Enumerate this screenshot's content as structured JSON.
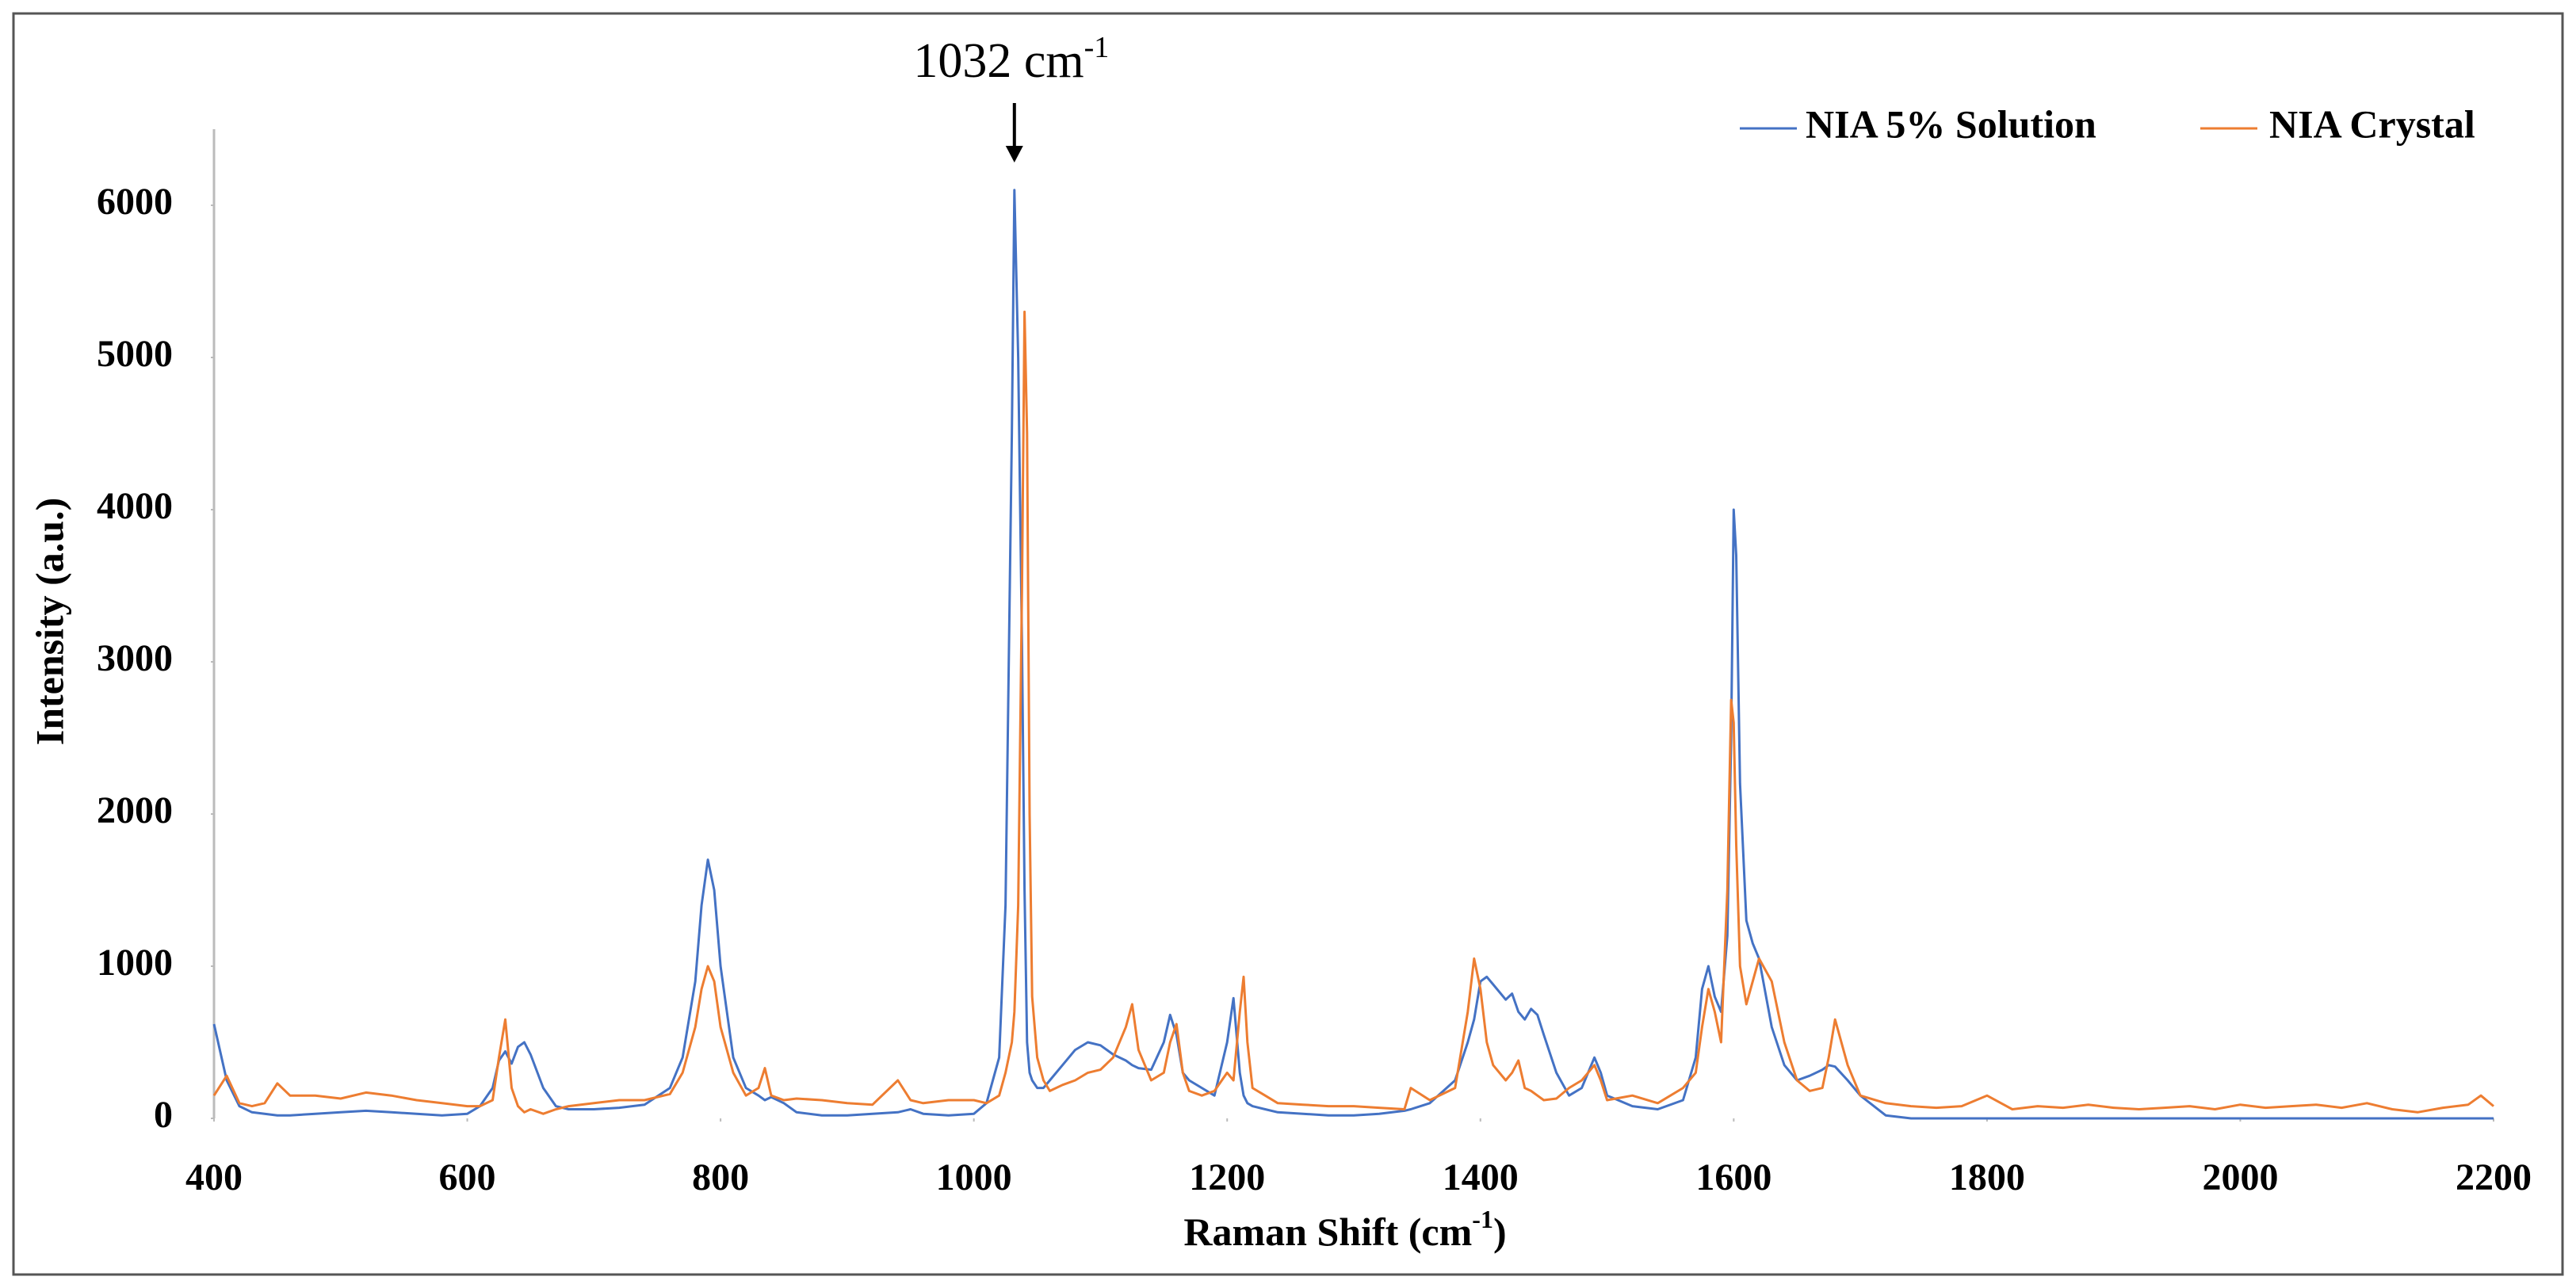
{
  "chart_data": {
    "type": "line",
    "annotation": {
      "text": "1032 cm",
      "sup": "-1",
      "x": 1032
    },
    "x_label": {
      "text": "Raman Shift (cm",
      "sup": "-1",
      "close": ")"
    },
    "y_label": "Intensity (a.u.)",
    "legend": "upper right",
    "xlim": [
      400,
      2200
    ],
    "xticks": [
      400,
      600,
      800,
      1000,
      1200,
      1400,
      1600,
      1800,
      2000,
      2200
    ],
    "ylim": [
      0,
      6500
    ],
    "yticks": [
      0,
      1000,
      2000,
      3000,
      4000,
      5000,
      6000
    ],
    "x": [
      400,
      410,
      420,
      430,
      440,
      450,
      460,
      480,
      500,
      520,
      540,
      560,
      580,
      600,
      610,
      620,
      625,
      630,
      635,
      640,
      645,
      650,
      660,
      670,
      680,
      700,
      720,
      740,
      760,
      770,
      780,
      785,
      790,
      795,
      800,
      810,
      820,
      830,
      835,
      840,
      850,
      860,
      880,
      900,
      920,
      940,
      950,
      960,
      980,
      1000,
      1010,
      1020,
      1025,
      1030,
      1032,
      1035,
      1038,
      1040,
      1042,
      1044,
      1046,
      1050,
      1055,
      1060,
      1070,
      1080,
      1090,
      1100,
      1110,
      1120,
      1125,
      1130,
      1140,
      1150,
      1155,
      1160,
      1165,
      1170,
      1180,
      1190,
      1200,
      1205,
      1210,
      1213,
      1216,
      1220,
      1230,
      1240,
      1260,
      1280,
      1300,
      1320,
      1340,
      1345,
      1360,
      1380,
      1390,
      1395,
      1400,
      1405,
      1410,
      1420,
      1425,
      1430,
      1435,
      1440,
      1445,
      1450,
      1460,
      1470,
      1480,
      1490,
      1495,
      1500,
      1520,
      1540,
      1560,
      1570,
      1575,
      1580,
      1585,
      1590,
      1595,
      1598,
      1600,
      1602,
      1605,
      1610,
      1615,
      1620,
      1630,
      1640,
      1650,
      1660,
      1670,
      1675,
      1680,
      1690,
      1700,
      1720,
      1740,
      1760,
      1780,
      1800,
      1820,
      1840,
      1860,
      1880,
      1900,
      1920,
      1940,
      1960,
      1980,
      2000,
      2020,
      2040,
      2060,
      2080,
      2100,
      2120,
      2140,
      2160,
      2180,
      2190,
      2200
    ],
    "series": [
      {
        "name": "NIA 5% Solution",
        "color": "#4472c4",
        "values": [
          620,
          250,
          80,
          40,
          30,
          20,
          20,
          30,
          40,
          50,
          40,
          30,
          20,
          30,
          80,
          200,
          380,
          440,
          360,
          470,
          500,
          420,
          200,
          80,
          60,
          60,
          70,
          90,
          200,
          400,
          900,
          1400,
          1700,
          1500,
          1000,
          400,
          200,
          150,
          120,
          140,
          100,
          40,
          20,
          20,
          30,
          40,
          60,
          30,
          20,
          30,
          100,
          400,
          1400,
          4500,
          6100,
          5000,
          3100,
          1500,
          500,
          300,
          250,
          200,
          200,
          250,
          350,
          450,
          500,
          480,
          420,
          380,
          350,
          330,
          320,
          500,
          680,
          550,
          300,
          250,
          200,
          150,
          500,
          790,
          300,
          150,
          100,
          80,
          60,
          40,
          30,
          20,
          20,
          30,
          50,
          60,
          100,
          250,
          500,
          650,
          900,
          930,
          880,
          780,
          820,
          700,
          650,
          720,
          680,
          550,
          300,
          150,
          200,
          400,
          300,
          150,
          80,
          60,
          120,
          400,
          850,
          1000,
          800,
          700,
          1200,
          2500,
          4000,
          3700,
          2200,
          1300,
          1150,
          1050,
          600,
          350,
          250,
          280,
          320,
          350,
          340,
          250,
          150,
          20,
          0,
          0,
          0,
          0,
          0,
          0,
          0,
          0,
          0,
          0,
          0,
          0,
          0,
          0,
          0,
          0,
          0,
          0,
          0,
          0,
          0,
          0,
          0,
          0,
          0
        ]
      },
      {
        "name": "NIA Crystal",
        "color": "#ed7d31",
        "values": [
          150,
          280,
          100,
          80,
          100,
          230,
          150,
          150,
          130,
          170,
          150,
          120,
          100,
          80,
          80,
          120,
          400,
          650,
          200,
          80,
          40,
          60,
          30,
          60,
          80,
          100,
          120,
          120,
          160,
          300,
          600,
          850,
          1000,
          900,
          600,
          300,
          150,
          200,
          330,
          150,
          120,
          130,
          120,
          100,
          90,
          250,
          120,
          100,
          120,
          120,
          100,
          150,
          300,
          500,
          700,
          1400,
          3500,
          5300,
          4500,
          2000,
          800,
          400,
          250,
          180,
          220,
          250,
          300,
          320,
          400,
          600,
          750,
          450,
          250,
          300,
          500,
          620,
          300,
          180,
          150,
          180,
          300,
          250,
          700,
          930,
          500,
          200,
          150,
          100,
          90,
          80,
          80,
          70,
          60,
          200,
          120,
          200,
          700,
          1050,
          850,
          500,
          350,
          250,
          300,
          380,
          200,
          180,
          150,
          120,
          130,
          200,
          250,
          350,
          250,
          120,
          150,
          100,
          200,
          300,
          600,
          850,
          700,
          500,
          1500,
          2750,
          2600,
          1800,
          1000,
          750,
          900,
          1050,
          900,
          500,
          250,
          180,
          200,
          400,
          650,
          350,
          150,
          100,
          80,
          70,
          80,
          150,
          60,
          80,
          70,
          90,
          70,
          60,
          70,
          80,
          60,
          90,
          70,
          80,
          90,
          70,
          100,
          60,
          40,
          70,
          90,
          150,
          80
        ]
      }
    ]
  }
}
